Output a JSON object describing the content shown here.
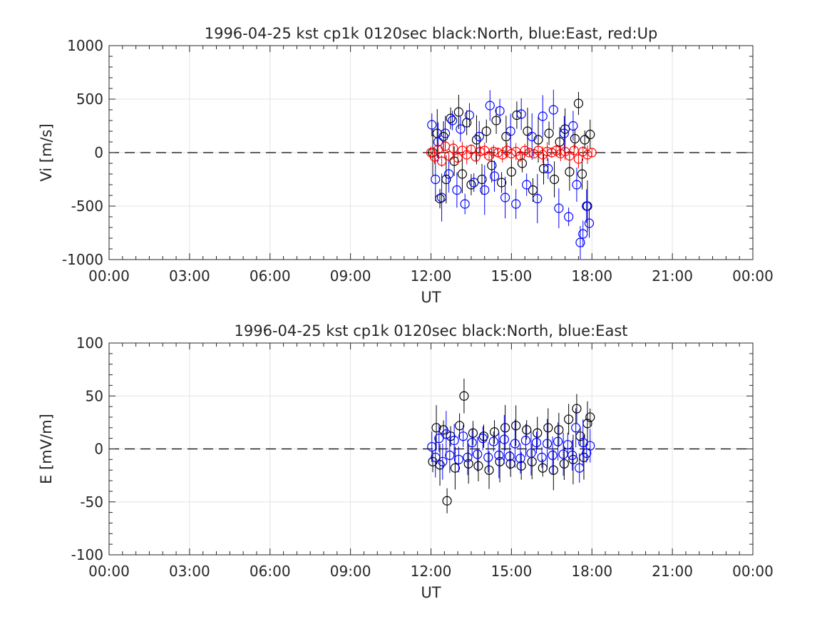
{
  "chart_data": [
    {
      "type": "scatter",
      "title": "1996-04-25 kst cp1k 0120sec black:North, blue:East, red:Up",
      "xlabel": "UT",
      "ylabel": "Vi [m/s]",
      "xlim": [
        "00:00",
        "24:00"
      ],
      "ylim": [
        -1000,
        1000
      ],
      "x_ticks": [
        "00:00",
        "03:00",
        "06:00",
        "09:00",
        "12:00",
        "15:00",
        "18:00",
        "21:00",
        "00:00"
      ],
      "y_ticks": [
        "-1000",
        "-500",
        "0",
        "500",
        "1000"
      ],
      "grid": true,
      "reference_line": 0,
      "series": [
        {
          "name": "North",
          "color": "#000000",
          "x": [
            "12:04",
            "12:14",
            "12:20",
            "12:28",
            "12:34",
            "12:44",
            "12:52",
            "13:02",
            "13:10",
            "13:20",
            "13:30",
            "13:42",
            "13:54",
            "14:04",
            "14:16",
            "14:26",
            "14:38",
            "14:48",
            "15:00",
            "15:12",
            "15:24",
            "15:36",
            "15:48",
            "16:00",
            "16:12",
            "16:24",
            "16:36",
            "16:48",
            "17:00",
            "17:10",
            "17:22",
            "17:30",
            "17:38",
            "17:44",
            "17:50",
            "17:56"
          ],
          "y": [
            0,
            180,
            -430,
            150,
            -250,
            320,
            -80,
            380,
            -200,
            280,
            -300,
            120,
            -250,
            200,
            -120,
            300,
            -280,
            150,
            -180,
            350,
            -100,
            200,
            -350,
            120,
            -150,
            180,
            -250,
            100,
            220,
            -180,
            130,
            460,
            -200,
            120,
            -500,
            170
          ]
        },
        {
          "name": "East",
          "color": "#0000ff",
          "x": [
            "12:02",
            "12:10",
            "12:16",
            "12:24",
            "12:32",
            "12:40",
            "12:48",
            "12:58",
            "13:06",
            "13:16",
            "13:26",
            "13:36",
            "13:48",
            "14:00",
            "14:12",
            "14:22",
            "14:34",
            "14:46",
            "14:58",
            "15:10",
            "15:22",
            "15:34",
            "15:46",
            "15:58",
            "16:10",
            "16:22",
            "16:34",
            "16:46",
            "16:58",
            "17:08",
            "17:18",
            "17:26",
            "17:34",
            "17:40",
            "17:48",
            "17:54"
          ],
          "y": [
            260,
            -250,
            100,
            -420,
            180,
            -200,
            300,
            -350,
            220,
            -480,
            350,
            -280,
            150,
            -350,
            440,
            -220,
            390,
            -420,
            200,
            -480,
            360,
            -300,
            150,
            -430,
            340,
            -150,
            400,
            -520,
            180,
            -600,
            250,
            -300,
            -840,
            -760,
            -500,
            -660
          ]
        },
        {
          "name": "Up",
          "color": "#ff0000",
          "x": [
            "12:00",
            "12:08",
            "12:16",
            "12:24",
            "12:32",
            "12:40",
            "12:50",
            "13:00",
            "13:10",
            "13:20",
            "13:30",
            "13:40",
            "13:50",
            "14:00",
            "14:10",
            "14:20",
            "14:30",
            "14:40",
            "14:50",
            "15:00",
            "15:10",
            "15:20",
            "15:30",
            "15:40",
            "15:50",
            "16:00",
            "16:10",
            "16:20",
            "16:30",
            "16:40",
            "16:50",
            "17:00",
            "17:10",
            "17:20",
            "17:30",
            "17:40",
            "17:50",
            "18:00"
          ],
          "y": [
            0,
            -40,
            30,
            -80,
            60,
            -30,
            40,
            -50,
            20,
            -20,
            30,
            -40,
            10,
            20,
            -30,
            10,
            0,
            -20,
            20,
            -10,
            10,
            -30,
            20,
            0,
            -10,
            20,
            -20,
            10,
            0,
            20,
            -10,
            10,
            -30,
            20,
            -60,
            10,
            -20,
            0
          ]
        }
      ]
    },
    {
      "type": "scatter",
      "title": "1996-04-25 kst cp1k 0120sec black:North, blue:East",
      "xlabel": "UT",
      "ylabel": "E [mV/m]",
      "xlim": [
        "00:00",
        "24:00"
      ],
      "ylim": [
        -100,
        100
      ],
      "x_ticks": [
        "00:00",
        "03:00",
        "06:00",
        "09:00",
        "12:00",
        "15:00",
        "18:00",
        "21:00",
        "00:00"
      ],
      "y_ticks": [
        "-100",
        "-50",
        "0",
        "50",
        "100"
      ],
      "grid": true,
      "reference_line": 0,
      "series": [
        {
          "name": "North",
          "color": "#000000",
          "x": [
            "12:04",
            "12:12",
            "12:20",
            "12:28",
            "12:36",
            "12:44",
            "12:54",
            "13:04",
            "13:14",
            "13:24",
            "13:34",
            "13:46",
            "13:58",
            "14:10",
            "14:22",
            "14:34",
            "14:46",
            "14:58",
            "15:10",
            "15:22",
            "15:34",
            "15:46",
            "15:58",
            "16:10",
            "16:22",
            "16:34",
            "16:46",
            "16:58",
            "17:08",
            "17:18",
            "17:26",
            "17:34",
            "17:42",
            "17:50",
            "17:56"
          ],
          "y": [
            -12,
            20,
            -15,
            18,
            -49,
            12,
            -18,
            22,
            50,
            -14,
            15,
            -16,
            12,
            -20,
            16,
            -12,
            20,
            -14,
            22,
            -16,
            18,
            -12,
            15,
            -18,
            20,
            -20,
            18,
            -14,
            28,
            -10,
            38,
            12,
            -8,
            24,
            30
          ]
        },
        {
          "name": "East",
          "color": "#0000ff",
          "x": [
            "12:02",
            "12:10",
            "12:18",
            "12:26",
            "12:34",
            "12:42",
            "12:52",
            "13:02",
            "13:12",
            "13:22",
            "13:32",
            "13:44",
            "13:56",
            "14:08",
            "14:20",
            "14:32",
            "14:44",
            "14:56",
            "15:08",
            "15:20",
            "15:32",
            "15:44",
            "15:56",
            "16:08",
            "16:20",
            "16:32",
            "16:44",
            "16:56",
            "17:06",
            "17:16",
            "17:24",
            "17:32",
            "17:40",
            "17:48",
            "17:56"
          ],
          "y": [
            2,
            -8,
            10,
            -12,
            14,
            -6,
            8,
            -10,
            12,
            -8,
            6,
            -5,
            10,
            -8,
            7,
            -6,
            9,
            -7,
            5,
            -9,
            8,
            -4,
            6,
            -8,
            5,
            -6,
            7,
            -5,
            4,
            -6,
            20,
            -18,
            6,
            -4,
            3
          ]
        }
      ]
    }
  ]
}
